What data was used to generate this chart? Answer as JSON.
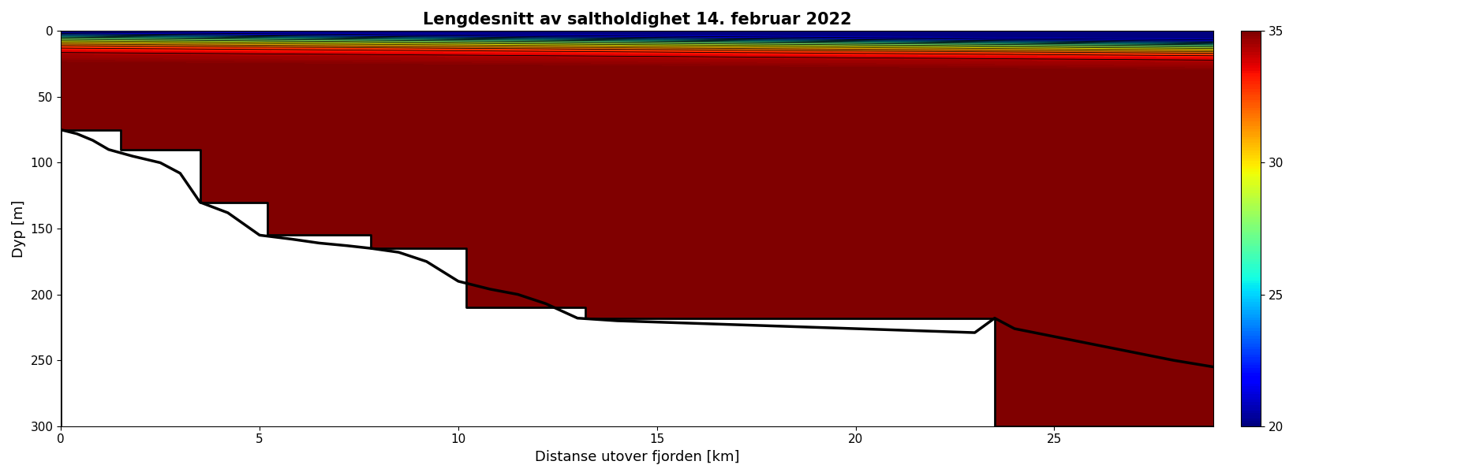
{
  "title": "Lengdesnitt av saltholdighet 14. februar 2022",
  "xlabel": "Distanse utover fjorden [km]",
  "ylabel": "Dyp [m]",
  "xlim": [
    0,
    29
  ],
  "ylim": [
    300,
    0
  ],
  "salinity_min": 20,
  "salinity_max": 35,
  "colorbar_ticks": [
    20,
    25,
    30,
    35
  ],
  "x_ticks": [
    0,
    5,
    10,
    15,
    20,
    25
  ],
  "y_ticks": [
    0,
    50,
    100,
    150,
    200,
    250,
    300
  ],
  "stepped_bathy_x": [
    0,
    0,
    1.5,
    1.5,
    3.5,
    3.5,
    5.2,
    5.2,
    7.8,
    7.8,
    10.2,
    10.2,
    13.2,
    13.2,
    23.5,
    23.5,
    29.0,
    29.0
  ],
  "stepped_bathy_y": [
    300,
    75,
    75,
    90,
    90,
    130,
    130,
    155,
    155,
    165,
    165,
    210,
    210,
    218,
    218,
    300,
    300,
    300
  ],
  "smooth_line_x": [
    0.0,
    0.4,
    0.8,
    1.2,
    1.8,
    2.5,
    3.0,
    3.5,
    4.2,
    5.0,
    5.8,
    6.5,
    7.2,
    7.8,
    8.5,
    9.2,
    10.0,
    10.8,
    11.5,
    12.2,
    13.0,
    14.0,
    15.0,
    16.0,
    17.0,
    18.0,
    19.0,
    20.0,
    21.0,
    22.0,
    23.0,
    23.5,
    24.0,
    25.0,
    26.0,
    27.0,
    28.0,
    29.0
  ],
  "smooth_line_y": [
    75,
    78,
    83,
    90,
    95,
    100,
    108,
    130,
    138,
    155,
    158,
    161,
    163,
    165,
    168,
    175,
    190,
    196,
    200,
    207,
    218,
    220,
    221,
    222,
    223,
    224,
    225,
    226,
    227,
    228,
    229,
    218,
    226,
    232,
    238,
    244,
    250,
    255
  ]
}
